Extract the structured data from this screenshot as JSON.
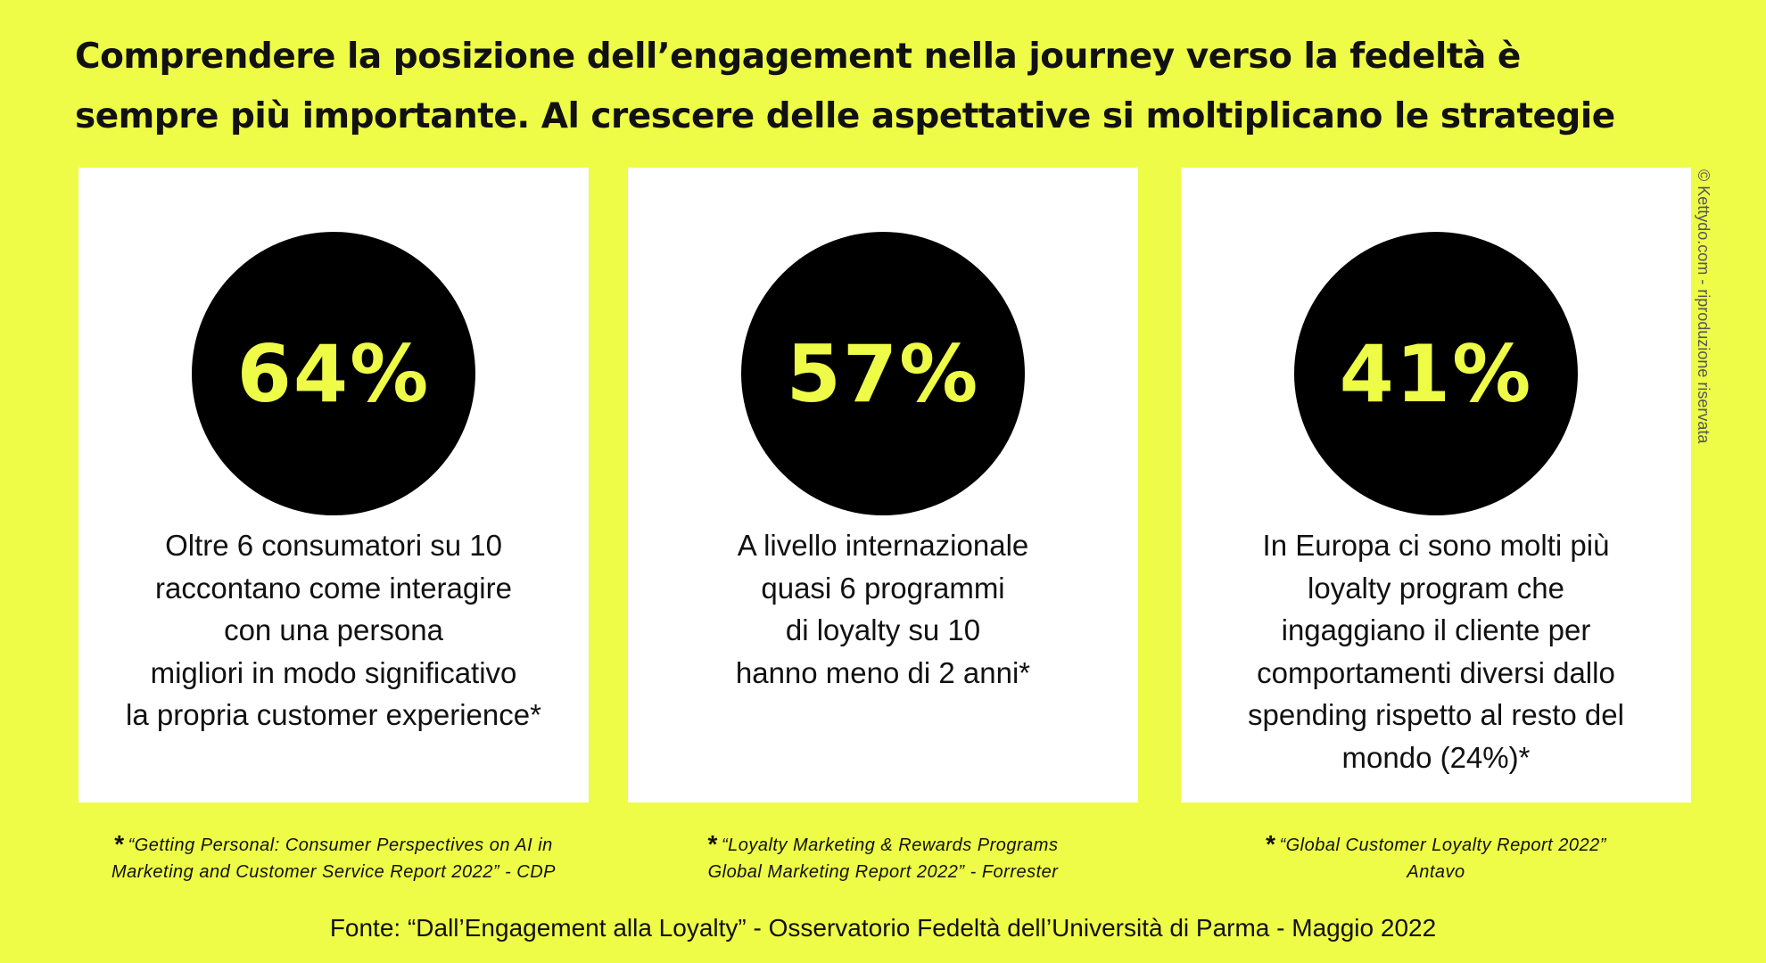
{
  "headline": {
    "line1": "Comprendere la posizione dell’engagement nella journey verso la fedeltà è",
    "line2": "sempre più importante. Al crescere delle aspettative si moltiplicano le strategie"
  },
  "cards": [
    {
      "value": "64%",
      "lines": [
        "Oltre 6 consumatori su 10",
        "raccontano come interagire",
        "con una persona",
        "migliori in modo significativo",
        "la propria customer experience*"
      ],
      "note_star": "*",
      "note": [
        "“Getting Personal: Consumer Perspectives on AI in",
        "Marketing and Customer Service Report 2022” - CDP"
      ]
    },
    {
      "value": "57%",
      "lines": [
        "A livello internazionale",
        "quasi 6 programmi",
        "di loyalty su 10",
        "hanno meno di 2 anni*"
      ],
      "note_star": "*",
      "note": [
        "“Loyalty Marketing & Rewards Programs",
        "Global Marketing Report 2022” - Forrester"
      ]
    },
    {
      "value": "41%",
      "lines": [
        "In Europa ci sono molti più",
        "loyalty program che",
        "ingaggiano il cliente per",
        "comportamenti diversi dallo",
        "spending rispetto al resto del",
        "mondo (24%)*"
      ],
      "note_star": "*",
      "note": [
        "“Global Customer Loyalty Report 2022”",
        "Antavo"
      ]
    }
  ],
  "source": "Fonte: “Dall’Engagement alla Loyalty” - Osservatorio Fedeltà dell’Università di Parma - Maggio 2022",
  "credit": "© Kettydo.com - riproduzione riservata",
  "colors": {
    "background": "#eefc47",
    "circle": "#000000",
    "card": "#ffffff",
    "accent_text": "#eefc47"
  }
}
